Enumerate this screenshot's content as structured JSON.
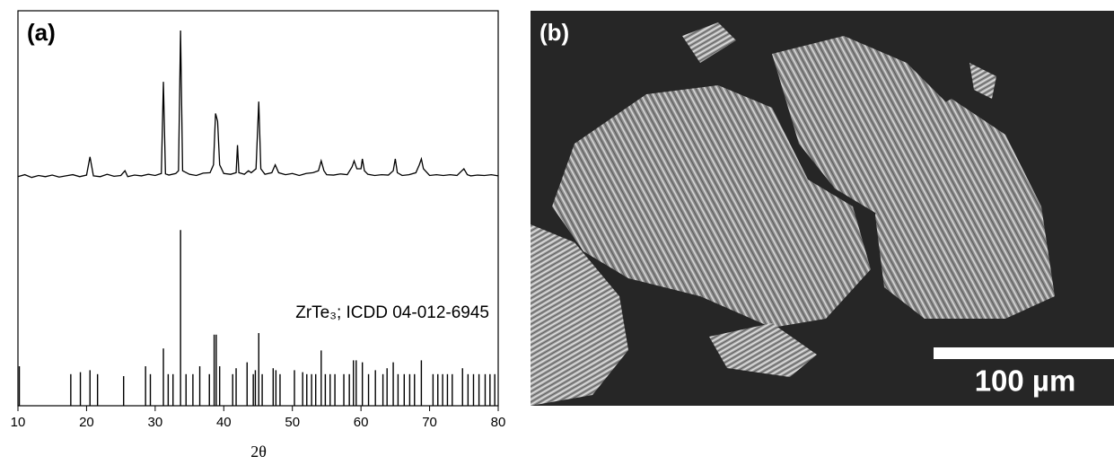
{
  "chart_data": {
    "type": "line",
    "panel_label": "(a)",
    "xlabel": "2θ",
    "annotation": "ZrTe₃; ICDD 04-012-6945",
    "xlim": [
      10,
      80
    ],
    "xticks": [
      10,
      20,
      30,
      40,
      50,
      60,
      70,
      80
    ],
    "ylim": [
      0,
      100
    ],
    "series": [
      {
        "type": "line",
        "color": "#000000",
        "x": [
          10,
          11,
          12,
          13,
          14,
          15,
          16,
          17,
          18,
          19,
          20,
          20.5,
          21,
          22,
          23,
          24,
          25,
          25.6,
          26,
          27,
          28,
          29,
          30,
          30.9,
          31.2,
          31.5,
          32,
          33,
          33.4,
          33.7,
          34,
          35,
          36,
          37,
          38,
          38.5,
          38.8,
          39.1,
          39.4,
          40,
          41,
          41.8,
          42,
          42.2,
          43,
          43.6,
          44,
          44.7,
          45.1,
          45.4,
          46,
          47,
          47.5,
          48,
          49,
          50,
          51,
          52,
          53,
          53.8,
          54.2,
          54.6,
          55,
          56,
          57,
          58,
          58.7,
          59,
          59.4,
          60,
          60.2,
          60.5,
          61,
          62,
          63,
          64,
          64.7,
          65,
          65.3,
          66,
          67,
          68,
          68.5,
          68.8,
          69.1,
          70,
          71,
          72,
          73,
          74,
          75,
          75.5,
          76,
          77,
          78,
          79,
          80
        ],
        "values": [
          58,
          58.5,
          57.8,
          58.3,
          58,
          58.4,
          57.9,
          58.2,
          58.5,
          58,
          58.4,
          63,
          58.2,
          58,
          58.6,
          58.1,
          58.3,
          59.5,
          58,
          58.4,
          58.2,
          58.6,
          58.3,
          58.8,
          82,
          58.7,
          58.4,
          58.8,
          59.5,
          95,
          59.5,
          58.6,
          58.3,
          58.9,
          59,
          61,
          74,
          72,
          61,
          58.8,
          58.6,
          59,
          66,
          59,
          58.6,
          59.5,
          59,
          60,
          77,
          60,
          58.6,
          59,
          61,
          59,
          58.5,
          58.8,
          58.3,
          58.8,
          59,
          59.5,
          62,
          59.5,
          58.5,
          58.4,
          58.7,
          58.5,
          60.5,
          62,
          60,
          60,
          62.5,
          59.5,
          58.6,
          58.3,
          58.5,
          58.4,
          59.5,
          62.5,
          59,
          58.3,
          58.5,
          59,
          61,
          62.5,
          60,
          58.3,
          58.5,
          58.3,
          58.5,
          58.3,
          60,
          58.5,
          58.2,
          58.4,
          58.3,
          58.5,
          58.2
        ]
      },
      {
        "type": "stick",
        "color": "#000000",
        "x": [
          10.2,
          17.7,
          19.1,
          20.5,
          21.6,
          25.4,
          28.6,
          29.3,
          31.2,
          31.9,
          32.6,
          33.7,
          34.5,
          35.5,
          36.5,
          37.9,
          38.6,
          38.9,
          39.4,
          41.3,
          41.8,
          43.4,
          44.3,
          44.6,
          45.1,
          45.6,
          47.2,
          47.6,
          48.2,
          50.3,
          51.5,
          52.1,
          52.8,
          53.4,
          54.2,
          54.8,
          55.5,
          56.2,
          57.5,
          58.3,
          58.9,
          59.3,
          60.2,
          61.1,
          62.1,
          63.2,
          63.8,
          64.7,
          65.4,
          66.3,
          67.1,
          67.8,
          68.8,
          70.5,
          71.2,
          71.9,
          72.6,
          73.3,
          74.8,
          75.6,
          76.4,
          77.2,
          78.1,
          78.8,
          79.5
        ],
        "values": [
          10,
          8,
          8.5,
          9,
          8,
          7.5,
          10,
          8,
          14.5,
          8,
          8,
          44.5,
          8,
          8,
          10,
          8,
          18,
          18,
          10,
          8,
          9.5,
          11,
          8,
          9,
          18.4,
          8,
          9.5,
          9,
          8,
          9,
          8.5,
          8,
          8,
          8,
          14,
          8,
          8,
          8,
          8,
          8,
          11.5,
          11.5,
          11,
          8,
          9,
          8,
          9.5,
          11,
          8,
          8,
          8,
          8,
          11.5,
          8,
          8,
          8,
          8,
          8,
          9.5,
          8,
          8,
          8,
          8,
          8,
          8
        ]
      }
    ]
  },
  "image": {
    "panel_label": "(b)",
    "scale_bar": "100 µm"
  }
}
